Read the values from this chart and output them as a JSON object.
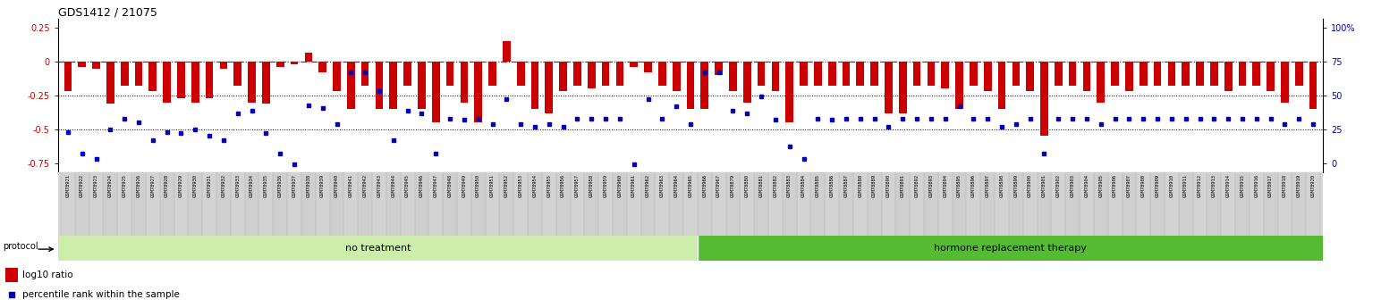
{
  "title": "GDS1412 / 21075",
  "samples": [
    "GSM78921",
    "GSM78922",
    "GSM78923",
    "GSM78924",
    "GSM78925",
    "GSM78926",
    "GSM78927",
    "GSM78928",
    "GSM78929",
    "GSM78930",
    "GSM78931",
    "GSM78932",
    "GSM78933",
    "GSM78934",
    "GSM78935",
    "GSM78936",
    "GSM78937",
    "GSM78938",
    "GSM78939",
    "GSM78940",
    "GSM78941",
    "GSM78942",
    "GSM78943",
    "GSM78944",
    "GSM78945",
    "GSM78946",
    "GSM78947",
    "GSM78948",
    "GSM78949",
    "GSM78950",
    "GSM78951",
    "GSM78952",
    "GSM78953",
    "GSM78954",
    "GSM78955",
    "GSM78956",
    "GSM78957",
    "GSM78958",
    "GSM78959",
    "GSM78960",
    "GSM78961",
    "GSM78962",
    "GSM78963",
    "GSM78964",
    "GSM78965",
    "GSM78966",
    "GSM78967",
    "GSM78879",
    "GSM78880",
    "GSM78881",
    "GSM78882",
    "GSM78883",
    "GSM78884",
    "GSM78885",
    "GSM78886",
    "GSM78887",
    "GSM78888",
    "GSM78889",
    "GSM78890",
    "GSM78891",
    "GSM78892",
    "GSM78893",
    "GSM78894",
    "GSM78895",
    "GSM78896",
    "GSM78897",
    "GSM78898",
    "GSM78899",
    "GSM78900",
    "GSM78901",
    "GSM78902",
    "GSM78903",
    "GSM78904",
    "GSM78905",
    "GSM78906",
    "GSM78907",
    "GSM78908",
    "GSM78909",
    "GSM78910",
    "GSM78911",
    "GSM78912",
    "GSM78913",
    "GSM78914",
    "GSM78915",
    "GSM78916",
    "GSM78917",
    "GSM78918",
    "GSM78919",
    "GSM78920"
  ],
  "log10_ratio": [
    -0.22,
    -0.04,
    -0.05,
    -0.31,
    -0.18,
    -0.18,
    -0.22,
    -0.3,
    -0.27,
    -0.3,
    -0.27,
    -0.05,
    -0.18,
    -0.3,
    -0.31,
    -0.04,
    -0.02,
    0.07,
    -0.08,
    -0.22,
    -0.35,
    -0.18,
    -0.35,
    -0.35,
    -0.18,
    -0.35,
    -0.45,
    -0.18,
    -0.3,
    -0.45,
    -0.18,
    0.15,
    -0.18,
    -0.35,
    -0.38,
    -0.22,
    -0.18,
    -0.2,
    -0.18,
    -0.18,
    -0.04,
    -0.08,
    -0.18,
    -0.22,
    -0.35,
    -0.35,
    -0.1,
    -0.22,
    -0.3,
    -0.18,
    -0.22,
    -0.45,
    -0.18,
    -0.18,
    -0.18,
    -0.18,
    -0.18,
    -0.18,
    -0.38,
    -0.38,
    -0.18,
    -0.18,
    -0.2,
    -0.35,
    -0.18,
    -0.22,
    -0.35,
    -0.18,
    -0.22,
    -0.55,
    -0.18,
    -0.18,
    -0.22,
    -0.3,
    -0.18,
    -0.22,
    -0.18,
    -0.18,
    -0.18,
    -0.18,
    -0.18,
    -0.18,
    -0.22,
    -0.18,
    -0.18,
    -0.22,
    -0.3,
    -0.18,
    -0.35
  ],
  "percentile_rank": [
    -0.52,
    -0.68,
    -0.72,
    -0.5,
    -0.42,
    -0.45,
    -0.58,
    -0.52,
    -0.53,
    -0.5,
    -0.55,
    -0.58,
    -0.38,
    -0.36,
    -0.53,
    -0.68,
    -0.76,
    -0.32,
    -0.34,
    -0.46,
    -0.08,
    -0.08,
    -0.22,
    -0.58,
    -0.36,
    -0.38,
    -0.68,
    -0.42,
    -0.43,
    -0.42,
    -0.46,
    -0.28,
    -0.46,
    -0.48,
    -0.46,
    -0.48,
    -0.42,
    -0.42,
    -0.42,
    -0.42,
    -0.76,
    -0.28,
    -0.42,
    -0.33,
    -0.46,
    -0.08,
    -0.08,
    -0.36,
    -0.38,
    -0.26,
    -0.43,
    -0.63,
    -0.72,
    -0.42,
    -0.43,
    -0.42,
    -0.42,
    -0.42,
    -0.48,
    -0.42,
    -0.42,
    -0.42,
    -0.42,
    -0.33,
    -0.42,
    -0.42,
    -0.48,
    -0.46,
    -0.42,
    -0.68,
    -0.42,
    -0.42,
    -0.42,
    -0.46,
    -0.42,
    -0.42,
    -0.42,
    -0.42,
    -0.42,
    -0.42,
    -0.42,
    -0.42,
    -0.42,
    -0.42,
    -0.42,
    -0.42,
    -0.46,
    -0.42,
    -0.46
  ],
  "no_treatment_count": 45,
  "ylim_left": [
    -0.82,
    0.32
  ],
  "bar_color": "#cc0000",
  "dot_color": "#0000bb",
  "dotted_lines": [
    -0.25,
    -0.5
  ],
  "no_treatment_label": "no treatment",
  "hormone_label": "hormone replacement therapy",
  "protocol_label": "protocol",
  "legend_bar_label": "log10 ratio",
  "legend_dot_label": "percentile rank within the sample",
  "no_treatment_color": "#cceeaa",
  "hormone_color": "#55bb33",
  "yticks_left": [
    0.25,
    0.0,
    -0.25,
    -0.5,
    -0.75
  ],
  "yticks_right_vals": [
    "100%",
    "75",
    "50",
    "25",
    "0"
  ],
  "yticks_right_pos": [
    0.25,
    0.0,
    -0.25,
    -0.5,
    -0.75
  ]
}
